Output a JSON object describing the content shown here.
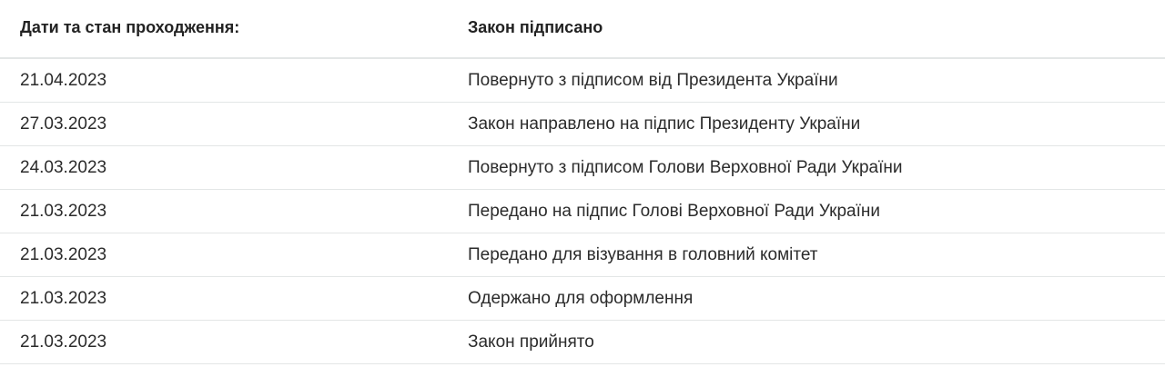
{
  "header": {
    "label": "Дати та стан проходження:",
    "status": "Закон підписано"
  },
  "rows": [
    {
      "date": "21.04.2023",
      "event": "Повернуто з підписом від Президента України"
    },
    {
      "date": "27.03.2023",
      "event": "Закон направлено на підпис Президенту України"
    },
    {
      "date": "24.03.2023",
      "event": "Повернуто з підписом Голови Верховної Ради України"
    },
    {
      "date": "21.03.2023",
      "event": "Передано на підпис Голові Верховної Ради України"
    },
    {
      "date": "21.03.2023",
      "event": "Передано для візування в головний комітет"
    },
    {
      "date": "21.03.2023",
      "event": "Одержано для оформлення"
    },
    {
      "date": "21.03.2023",
      "event": "Закон прийнято"
    }
  ]
}
